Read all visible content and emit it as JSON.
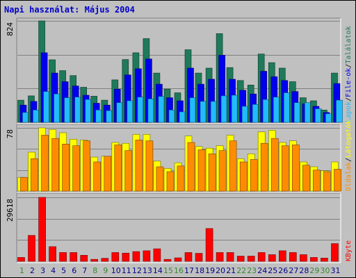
{
  "title": "Napi használat: Május 2004",
  "colors": {
    "hits": "#1e7a5a",
    "files": "#0000ee",
    "pages": "#22bbff",
    "visits": "#ffff00",
    "sites": "#ff8c00",
    "kbytes": "#ff0000",
    "weekday": "#000088",
    "weekend": "#338833"
  },
  "chart_data": [
    {
      "type": "bar",
      "panel": "top",
      "axis_max_label": "824",
      "ylim": [
        0,
        824
      ],
      "legend": [
        "Találatok",
        "File-ok",
        "Lapok"
      ],
      "categories": [
        "1",
        "2",
        "3",
        "4",
        "5",
        "6",
        "7",
        "8",
        "9",
        "10",
        "11",
        "12",
        "13",
        "14",
        "15",
        "16",
        "17",
        "18",
        "19",
        "20",
        "21",
        "22",
        "23",
        "24",
        "25",
        "26",
        "27",
        "28",
        "29",
        "30",
        "31"
      ],
      "series": [
        {
          "name": "Találatok",
          "values": [
            180,
            215,
            824,
            508,
            420,
            380,
            285,
            212,
            180,
            345,
            510,
            565,
            680,
            400,
            270,
            240,
            590,
            400,
            440,
            720,
            445,
            340,
            303,
            555,
            485,
            440,
            330,
            200,
            175,
            100,
            400
          ]
        },
        {
          "name": "File-ok",
          "values": [
            140,
            170,
            565,
            400,
            330,
            295,
            220,
            155,
            140,
            270,
            385,
            435,
            515,
            310,
            200,
            175,
            440,
            310,
            350,
            545,
            350,
            260,
            230,
            415,
            370,
            340,
            250,
            150,
            130,
            80,
            315
          ]
        },
        {
          "name": "Lapok",
          "values": [
            80,
            100,
            250,
            230,
            200,
            205,
            185,
            100,
            95,
            160,
            175,
            205,
            190,
            210,
            100,
            85,
            200,
            170,
            170,
            215,
            220,
            130,
            145,
            185,
            205,
            240,
            160,
            160,
            110,
            70,
            180
          ]
        }
      ]
    },
    {
      "type": "bar",
      "panel": "middle",
      "axis_max_label": "78",
      "ylim": [
        0,
        78
      ],
      "legend": [
        "Látogatók",
        "Oldalak"
      ],
      "categories": [
        "1",
        "2",
        "3",
        "4",
        "5",
        "6",
        "7",
        "8",
        "9",
        "10",
        "11",
        "12",
        "13",
        "14",
        "15",
        "16",
        "17",
        "18",
        "19",
        "20",
        "21",
        "22",
        "23",
        "24",
        "25",
        "26",
        "27",
        "28",
        "29",
        "30",
        "31"
      ],
      "series": [
        {
          "name": "Látogatók",
          "values": [
            17,
            48,
            78,
            76,
            72,
            64,
            63,
            42,
            43,
            60,
            59,
            70,
            70,
            37,
            28,
            35,
            68,
            55,
            53,
            56,
            69,
            40,
            46,
            73,
            75,
            60,
            62,
            36,
            30,
            25,
            36
          ]
        },
        {
          "name": "Oldalak",
          "values": [
            17,
            40,
            69,
            65,
            58,
            56,
            62,
            36,
            43,
            57,
            50,
            63,
            62,
            30,
            24,
            31,
            60,
            51,
            46,
            50,
            62,
            36,
            39,
            59,
            65,
            56,
            57,
            32,
            26,
            24,
            27
          ]
        }
      ]
    },
    {
      "type": "bar",
      "panel": "bottom",
      "axis_max_label": "29618",
      "ylim": [
        0,
        29618
      ],
      "legend": [
        "KByte"
      ],
      "categories": [
        "1",
        "2",
        "3",
        "4",
        "5",
        "6",
        "7",
        "8",
        "9",
        "10",
        "11",
        "12",
        "13",
        "14",
        "15",
        "16",
        "17",
        "18",
        "19",
        "20",
        "21",
        "22",
        "23",
        "24",
        "25",
        "26",
        "27",
        "28",
        "29",
        "30",
        "31"
      ],
      "series": [
        {
          "name": "KByte",
          "values": [
            1800,
            12000,
            29618,
            6800,
            4100,
            4100,
            2800,
            900,
            1400,
            4100,
            3800,
            4500,
            4900,
            5800,
            900,
            1600,
            4100,
            3700,
            15200,
            4100,
            4100,
            2400,
            2400,
            4100,
            3100,
            4900,
            4100,
            3100,
            1800,
            1500,
            8200
          ]
        }
      ],
      "weekend_days": [
        "1",
        "8",
        "9",
        "15",
        "16",
        "22",
        "23",
        "29",
        "30"
      ]
    }
  ]
}
